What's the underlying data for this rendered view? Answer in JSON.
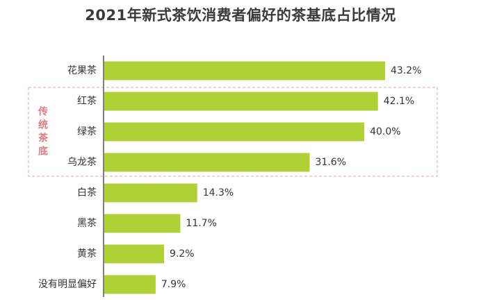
{
  "chart_data": {
    "type": "bar",
    "orientation": "horizontal",
    "title": "2021年新式茶饮消费者偏好的茶基底占比情况",
    "xlabel": "",
    "ylabel": "",
    "categories": [
      "花果茶",
      "红茶",
      "绿茶",
      "乌龙茶",
      "白茶",
      "黑茶",
      "黄茶",
      "没有明显偏好"
    ],
    "values": [
      43.2,
      42.1,
      40.0,
      31.6,
      14.3,
      11.7,
      9.2,
      7.9
    ],
    "value_labels": [
      "43.2%",
      "42.1%",
      "40.0%",
      "31.6%",
      "14.3%",
      "11.7%",
      "9.2%",
      "7.9%"
    ],
    "unit": "%",
    "xlim": [
      0,
      50
    ],
    "grid": false,
    "legend": "none",
    "bar_color": "#afd135",
    "axis_color": "#555555",
    "annotation": {
      "text": "传统茶底",
      "categories": [
        "红茶",
        "绿茶",
        "乌龙茶"
      ],
      "border_color": "#e8a0a8",
      "text_color": "#e07a86",
      "style": "dashed"
    }
  }
}
